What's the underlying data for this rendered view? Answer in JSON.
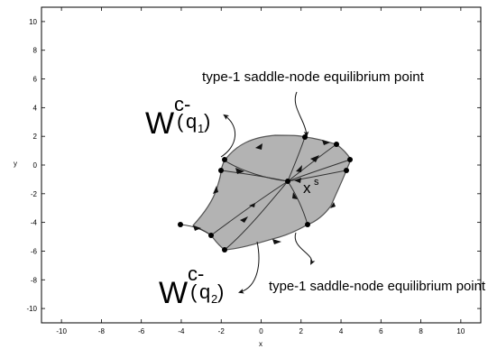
{
  "axes": {
    "xlabel": "x",
    "ylabel": "y",
    "xlim": [
      -11,
      11
    ],
    "ylim": [
      -11,
      11
    ],
    "xticks": [
      -10,
      -8,
      -6,
      -4,
      -2,
      0,
      2,
      4,
      6,
      8,
      10
    ],
    "yticks": [
      -10,
      -8,
      -6,
      -4,
      -2,
      0,
      2,
      4,
      6,
      8,
      10
    ]
  },
  "colors": {
    "region_fill": "#b3b3b3",
    "boundary": "#555555",
    "trajectory": "#333333",
    "point": "#000000"
  },
  "labels": {
    "top_annotation": "type-1 saddle-node equilibrium point",
    "bottom_annotation": "type-1 saddle-node equilibrium point",
    "w1_main": "W",
    "w1_sup": "c-",
    "w1_paren_open": "(",
    "w1_q": "q",
    "w1_sub": "1",
    "w1_paren_close": ")",
    "w2_main": "W",
    "w2_sup": "c-",
    "w2_paren_open": "(",
    "w2_q": "q",
    "w2_sub": "2",
    "w2_paren_close": ")",
    "xs_main": "x",
    "xs_sup": "s"
  },
  "chart_data": {
    "type": "phase-portrait",
    "xlabel": "x",
    "ylabel": "y",
    "xlim": [
      -11,
      11
    ],
    "ylim": [
      -11,
      11
    ],
    "stable_equilibrium": {
      "label": "x^s",
      "x": 1.3,
      "y": -1.1
    },
    "boundary_points": [
      {
        "x": -1.8,
        "y": 0.4
      },
      {
        "x": -2.0,
        "y": -0.4
      },
      {
        "x": 2.2,
        "y": 2.0
      },
      {
        "x": 3.8,
        "y": 1.4
      },
      {
        "x": 4.4,
        "y": 0.4
      },
      {
        "x": 4.2,
        "y": -0.4
      },
      {
        "x": 2.3,
        "y": -4.2
      },
      {
        "x": -2.5,
        "y": -5.0
      },
      {
        "x": -1.8,
        "y": -6.0
      }
    ],
    "exterior_point": {
      "x": -4.0,
      "y": -4.2
    },
    "annotations": [
      "type-1 saddle-node equilibrium point",
      "type-1 saddle-node equilibrium point",
      "W^{c-}(q_1)",
      "W^{c-}(q_2)"
    ]
  }
}
